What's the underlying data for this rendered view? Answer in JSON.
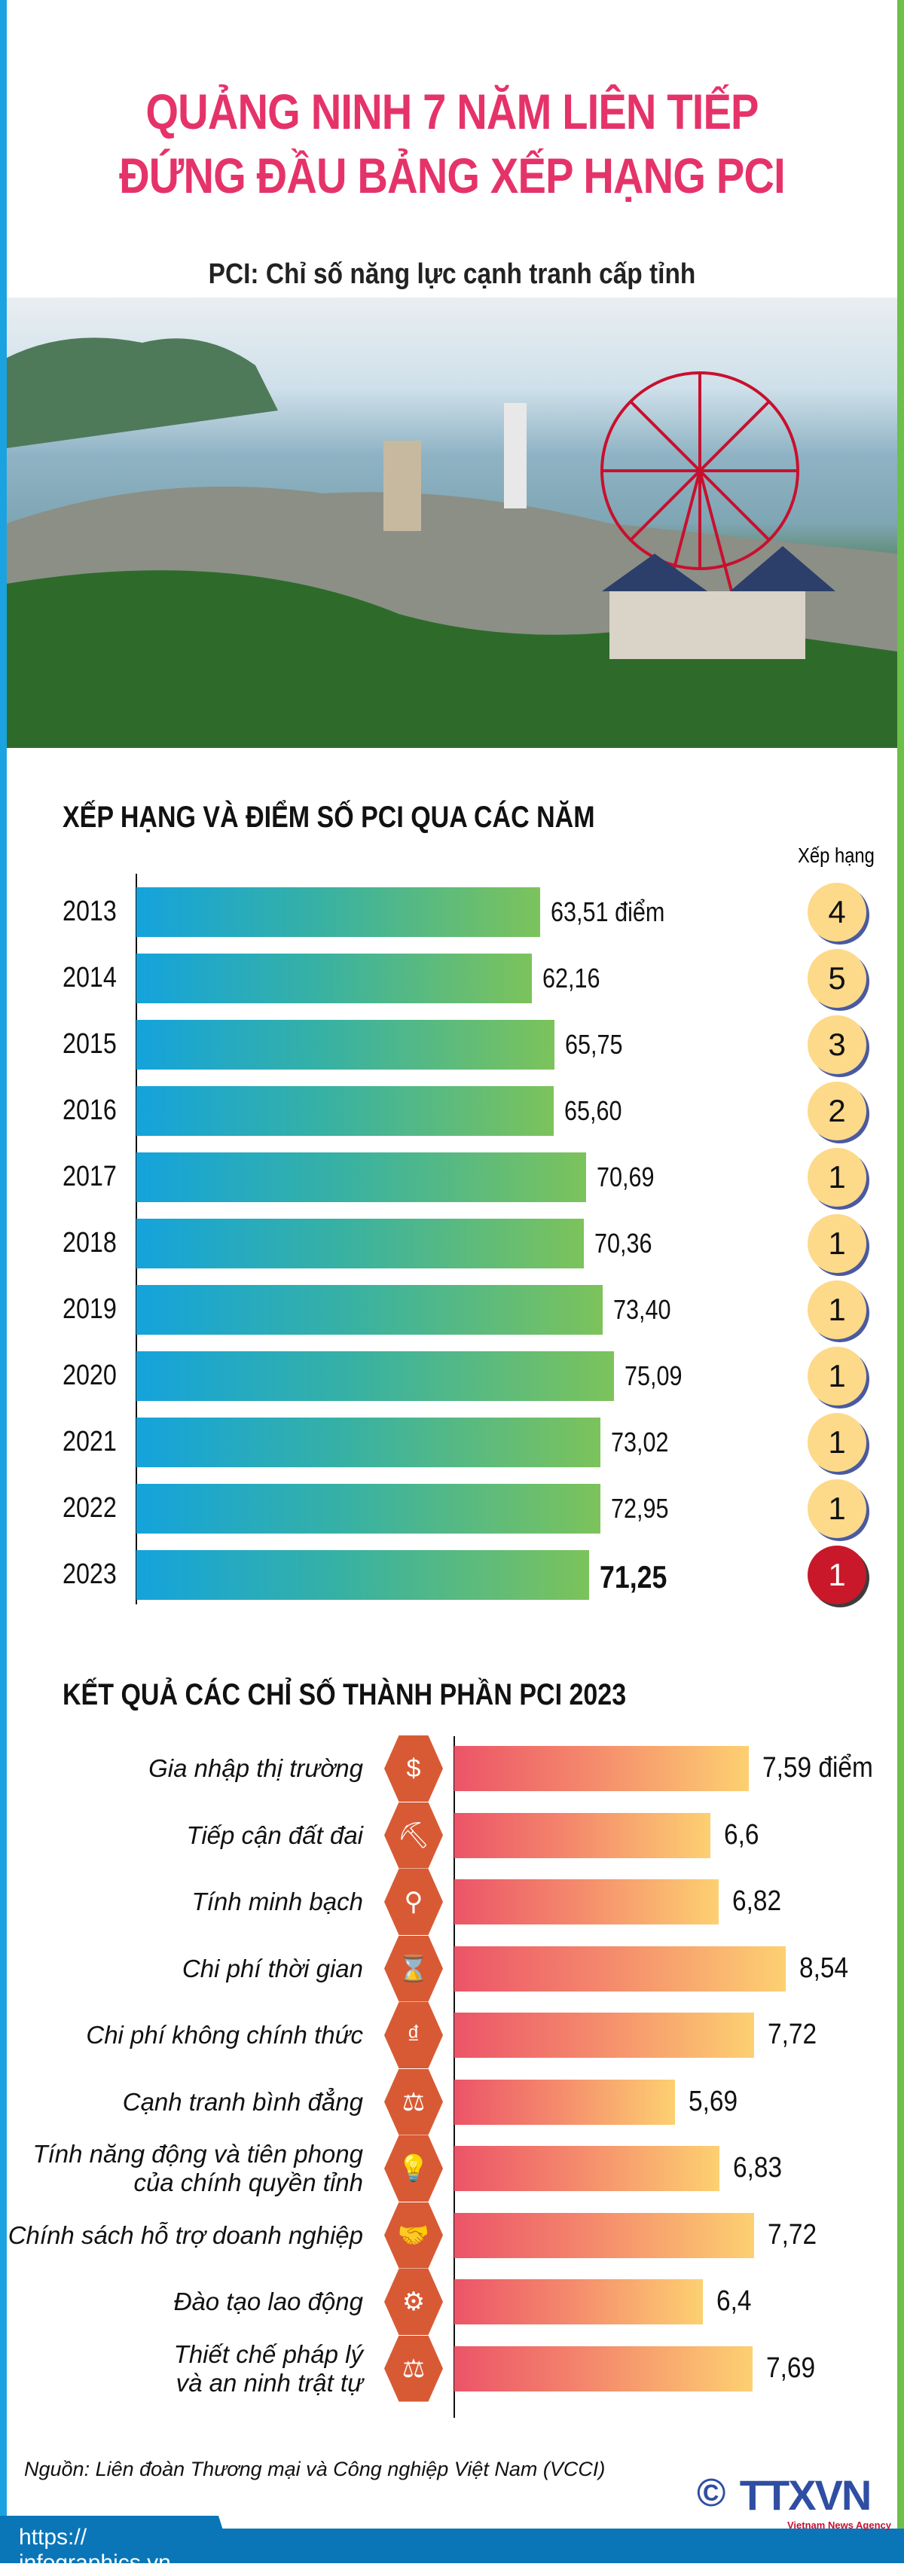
{
  "header": {
    "title_line1": "QUẢNG NINH 7 NĂM LIÊN TIẾP",
    "title_line2": "ĐỨNG ĐẦU BẢNG XẾP HẠNG PCI",
    "subtitle": "PCI: Chỉ số năng lực cạnh tranh cấp tỉnh",
    "title_color": "#e5336a"
  },
  "chart_data": [
    {
      "type": "bar",
      "orientation": "horizontal",
      "title": "XẾP HẠNG VÀ ĐIỂM SỐ PCI QUA CÁC NĂM",
      "categories": [
        "2013",
        "2014",
        "2015",
        "2016",
        "2017",
        "2018",
        "2019",
        "2020",
        "2021",
        "2022",
        "2023"
      ],
      "values": [
        63.51,
        62.16,
        65.75,
        65.6,
        70.69,
        70.36,
        73.4,
        75.09,
        73.02,
        72.95,
        71.25
      ],
      "value_labels": [
        "63,51 điểm",
        "62,16",
        "65,75",
        "65,60",
        "70,69",
        "70,36",
        "73,40",
        "75,09",
        "73,02",
        "72,95",
        "71,25"
      ],
      "rank_header": "Xếp hạng",
      "ranks": [
        "4",
        "5",
        "3",
        "2",
        "1",
        "1",
        "1",
        "1",
        "1",
        "1",
        "1"
      ],
      "bar_gradient": [
        "#14a3dc",
        "#7cc35b"
      ]
    },
    {
      "type": "bar",
      "orientation": "horizontal",
      "title": "KẾT QUẢ CÁC CHỈ SỐ THÀNH PHẦN PCI 2023",
      "categories": [
        [
          "Gia nhập thị trường"
        ],
        [
          "Tiếp cận đất đai"
        ],
        [
          "Tính minh bạch"
        ],
        [
          "Chi phí thời gian"
        ],
        [
          "Chi phí không chính thức"
        ],
        [
          "Cạnh tranh bình đẳng"
        ],
        [
          "Tính năng động và tiên phong",
          "của chính quyền tỉnh"
        ],
        [
          "Chính sách hỗ trợ doanh nghiệp"
        ],
        [
          "Đào tạo lao động"
        ],
        [
          "Thiết chế pháp lý",
          "và an ninh trật tự"
        ]
      ],
      "icons": [
        "market-entry-icon",
        "land-access-icon",
        "transparency-icon",
        "hourglass-icon",
        "money-icon",
        "fair-competition-icon",
        "lightbulb-icon",
        "handshake-icon",
        "training-icon",
        "scales-icon"
      ],
      "icon_glyphs": [
        "$",
        "⛏",
        "⚲",
        "⌛",
        "₫",
        "⚖",
        "💡",
        "🤝",
        "⚙",
        "⚖"
      ],
      "values": [
        7.59,
        6.6,
        6.82,
        8.54,
        7.72,
        5.69,
        6.83,
        7.72,
        6.4,
        7.69
      ],
      "value_labels": [
        "7,59 điểm",
        "6,6",
        "6,82",
        "8,54",
        "7,72",
        "5,69",
        "6,83",
        "7,72",
        "6,4",
        "7,69"
      ],
      "bar_gradient": [
        "#ec5468",
        "#fdd071"
      ]
    }
  ],
  "footer": {
    "source": "Nguồn: Liên đoàn Thương mại và Công nghiệp Việt Nam (VCCI)",
    "url": "https:// infographics.vn",
    "logo_text": "TTXVN",
    "logo_sub": "Vietnam News Agency",
    "copyright": "©"
  }
}
